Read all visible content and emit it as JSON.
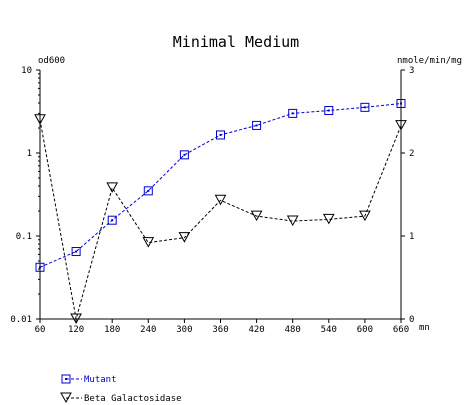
{
  "chart_data": {
    "type": "line",
    "title": "Minimal Medium",
    "xlabel": "mn",
    "y_left_label": "od600",
    "y_right_label": "nmole/min/mg",
    "x_ticks": [
      60,
      120,
      180,
      240,
      300,
      360,
      420,
      480,
      540,
      600,
      660
    ],
    "y_left_ticks": [
      0.01,
      0.1,
      1,
      10
    ],
    "y_left_tick_labels": [
      "0.01",
      "0.1",
      "1",
      "10"
    ],
    "y_left_scale": "log",
    "y_left_range": [
      0.01,
      10
    ],
    "y_right_ticks": [
      0,
      1,
      2,
      3
    ],
    "y_right_tick_labels": [
      "0",
      "1",
      "2",
      "3"
    ],
    "y_right_range": [
      0,
      3
    ],
    "x_range": [
      60,
      660
    ],
    "grid": false,
    "legend_position": "bottom-left",
    "series": [
      {
        "name": "Mutant",
        "axis": "left",
        "color": "#0000cc",
        "marker": "square",
        "x": [
          60,
          120,
          180,
          240,
          300,
          360,
          420,
          480,
          540,
          600,
          660
        ],
        "y": [
          0.042,
          0.065,
          0.155,
          0.35,
          0.95,
          1.65,
          2.15,
          3.0,
          3.25,
          3.55,
          3.95
        ]
      },
      {
        "name": "Beta Galactosidase",
        "axis": "right",
        "color": "#000000",
        "marker": "triangle-down",
        "x": [
          60,
          120,
          180,
          240,
          300,
          360,
          420,
          480,
          540,
          600,
          660
        ],
        "y": [
          2.4,
          0.0,
          1.58,
          0.92,
          0.98,
          1.43,
          1.24,
          1.18,
          1.2,
          1.24,
          2.33
        ]
      }
    ]
  }
}
